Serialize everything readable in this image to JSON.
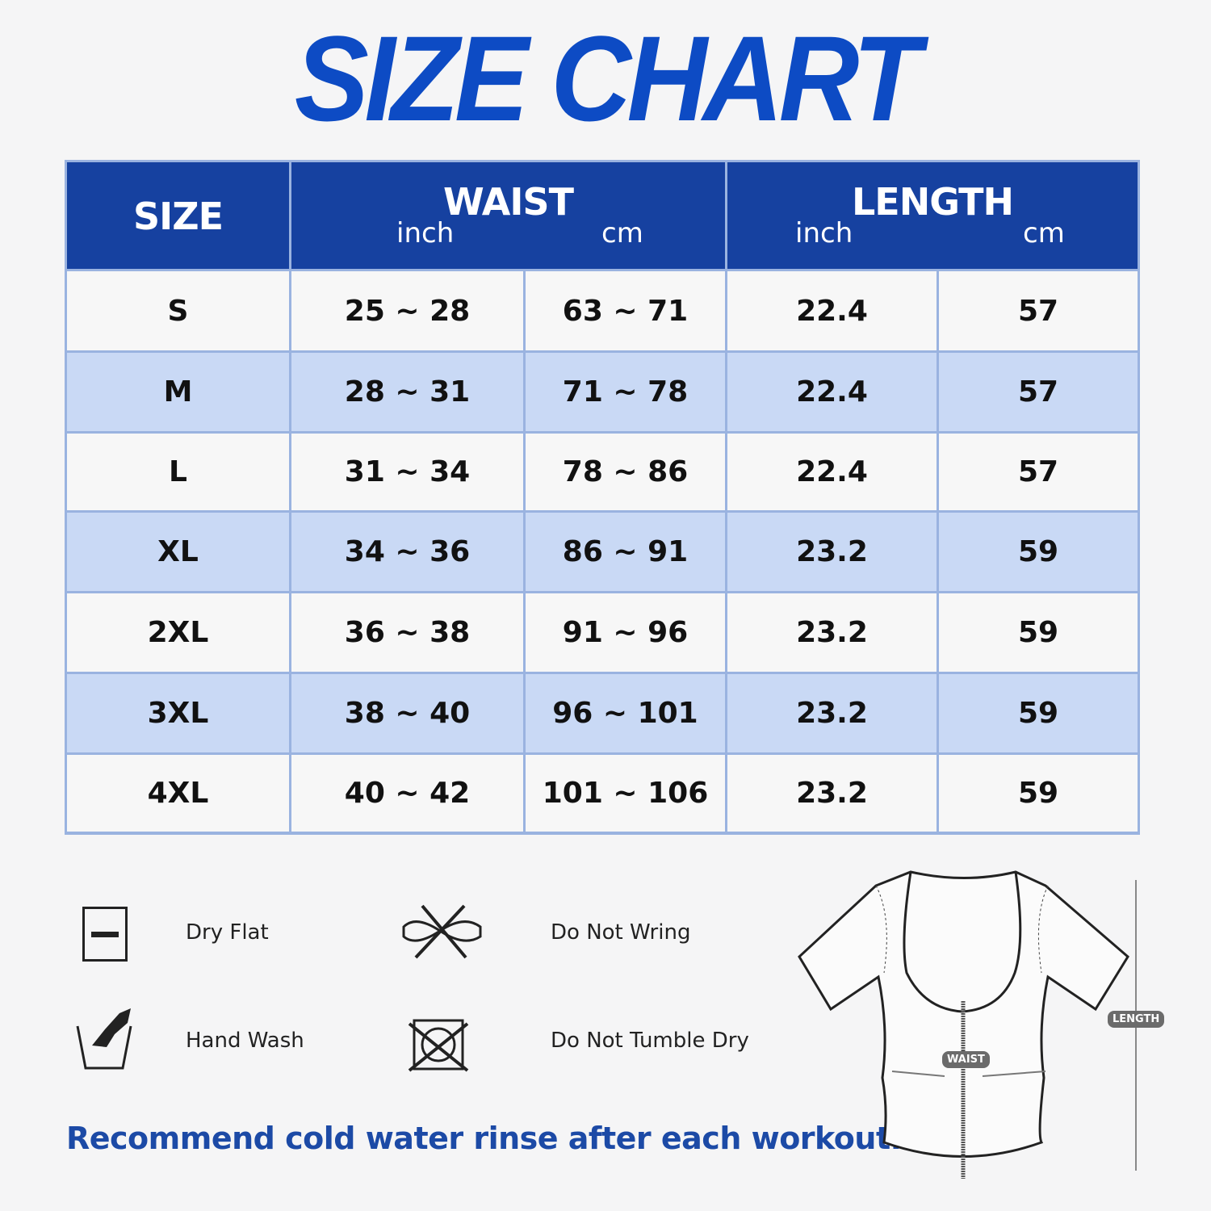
{
  "title": "SIZE CHART",
  "header": {
    "size": "SIZE",
    "waist": "WAIST",
    "length": "LENGTH",
    "inch": "inch",
    "cm": "cm"
  },
  "rows": [
    {
      "size": "S",
      "waist_inch": "25 ~ 28",
      "waist_cm": "63 ~ 71",
      "length_inch": "22.4",
      "length_cm": "57"
    },
    {
      "size": "M",
      "waist_inch": "28 ~ 31",
      "waist_cm": "71 ~ 78",
      "length_inch": "22.4",
      "length_cm": "57"
    },
    {
      "size": "L",
      "waist_inch": "31 ~ 34",
      "waist_cm": "78 ~ 86",
      "length_inch": "22.4",
      "length_cm": "57"
    },
    {
      "size": "XL",
      "waist_inch": "34 ~ 36",
      "waist_cm": "86 ~ 91",
      "length_inch": "23.2",
      "length_cm": "59"
    },
    {
      "size": "2XL",
      "waist_inch": "36 ~ 38",
      "waist_cm": "91 ~ 96",
      "length_inch": "23.2",
      "length_cm": "59"
    },
    {
      "size": "3XL",
      "waist_inch": "38 ~ 40",
      "waist_cm": "96 ~ 101",
      "length_inch": "23.2",
      "length_cm": "59"
    },
    {
      "size": "4XL",
      "waist_inch": "40 ~ 42",
      "waist_cm": "101 ~ 106",
      "length_inch": "23.2",
      "length_cm": "59"
    }
  ],
  "care": [
    {
      "icon": "dry-flat-icon",
      "label": "Dry Flat"
    },
    {
      "icon": "do-not-wring-icon",
      "label": "Do Not Wring"
    },
    {
      "icon": "hand-wash-icon",
      "label": "Hand Wash"
    },
    {
      "icon": "do-not-tumble-dry-icon",
      "label": "Do Not Tumble Dry"
    }
  ],
  "note": "Recommend cold water rinse after each workout.",
  "diagram": {
    "waist_label": "WAIST",
    "length_label": "LENGTH"
  },
  "colors": {
    "title": "#0d4bc4",
    "header": "#1641a0",
    "row_alt": "#c9d9f5",
    "row": "#f7f7f7",
    "note": "#1c4aa6"
  }
}
